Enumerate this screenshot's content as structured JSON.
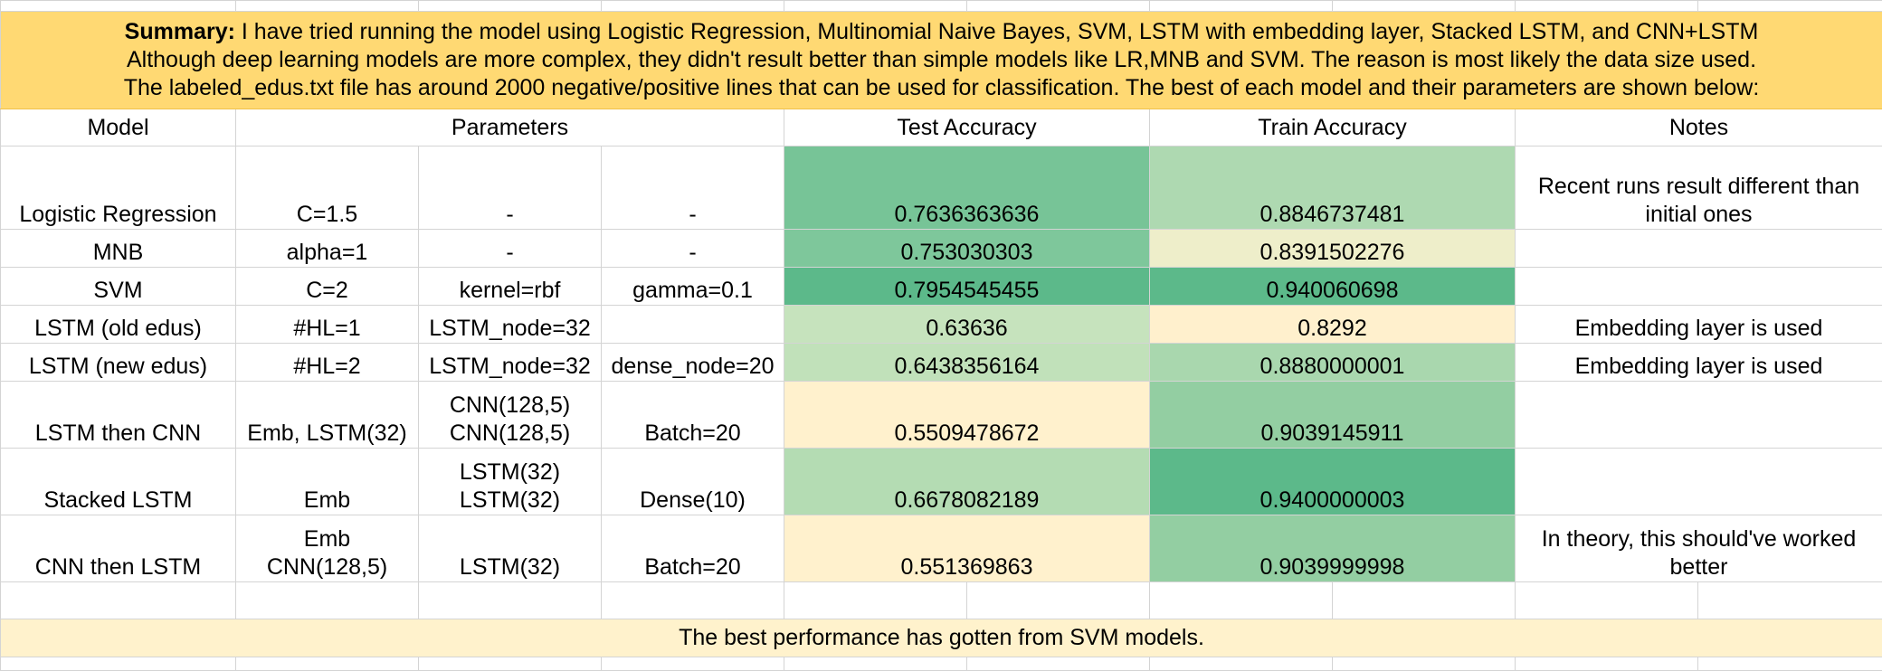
{
  "summary": {
    "bold_label": "Summary:",
    "line1": " I have tried running the model using Logistic Regression, Multinomial Naive Bayes, SVM, LSTM with embedding layer, Stacked LSTM, and CNN+LSTM",
    "line2": "Although deep learning models are more complex, they didn't result better than simple models like LR,MNB and SVM. The reason is most likely the data size used.",
    "line3": "The labeled_edus.txt file has around 2000 negative/positive lines that can be used for classification. The best of each model and their parameters are shown below:"
  },
  "headers": {
    "model": "Model",
    "parameters": "Parameters",
    "test_accuracy": "Test Accuracy",
    "train_accuracy": "Train Accuracy",
    "notes": "Notes"
  },
  "rows": [
    {
      "model": "Logistic Regression",
      "p1": "C=1.5",
      "p2": "-",
      "p3": "-",
      "test": "0.7636363636",
      "train": "0.8846737481",
      "notes": "Recent runs result different than initial ones",
      "test_color": "#77c497",
      "train_color": "#aed9b1"
    },
    {
      "model": "MNB",
      "p1": "alpha=1",
      "p2": "-",
      "p3": "-",
      "test": "0.753030303",
      "train": "0.8391502276",
      "notes": "",
      "test_color": "#7ec79b",
      "train_color": "#eeeeca"
    },
    {
      "model": "SVM",
      "p1": "C=2",
      "p2": "kernel=rbf",
      "p3": "gamma=0.1",
      "test": "0.7954545455",
      "train": "0.940060698",
      "notes": "",
      "test_color": "#5cb98a",
      "train_color": "#5cb98a"
    },
    {
      "model": "LSTM (old edus)",
      "p1": "#HL=1",
      "p2": "LSTM_node=32",
      "p3": "",
      "test": "0.63636",
      "train": "0.8292",
      "notes": "Embedding layer is used",
      "test_color": "#c6e3bd",
      "train_color": "#fff0cd"
    },
    {
      "model": "LSTM (new edus)",
      "p1": "#HL=2",
      "p2": "LSTM_node=32",
      "p3": "dense_node=20",
      "test": "0.6438356164",
      "train": "0.8880000001",
      "notes": "Embedding layer is used",
      "test_color": "#c1e1ba",
      "train_color": "#a9d7ae"
    },
    {
      "model": "LSTM then CNN",
      "p1": "Emb, LSTM(32)",
      "p2a": "CNN(128,5)",
      "p2b": "CNN(128,5)",
      "p3": "Batch=20",
      "test": "0.5509478672",
      "train": "0.9039145911",
      "notes": "",
      "test_color": "#fff1cd",
      "train_color": "#93cea2"
    },
    {
      "model": "Stacked LSTM",
      "p1": "Emb",
      "p2a": "LSTM(32)",
      "p2b": "LSTM(32)",
      "p3": "Dense(10)",
      "test": "0.6678082189",
      "train": "0.9400000003",
      "notes": "",
      "test_color": "#b4dcb3",
      "train_color": "#5cb98a"
    },
    {
      "model": "CNN then LSTM",
      "p1a": "Emb",
      "p1b": "CNN(128,5)",
      "p2": "LSTM(32)",
      "p3": "Batch=20",
      "test": "0.551369863",
      "train": "0.9039999998",
      "notes": "In theory, this should've worked better",
      "test_color": "#fff1cd",
      "train_color": "#93cea2"
    }
  ],
  "footer": "The best performance has gotten from SVM models."
}
